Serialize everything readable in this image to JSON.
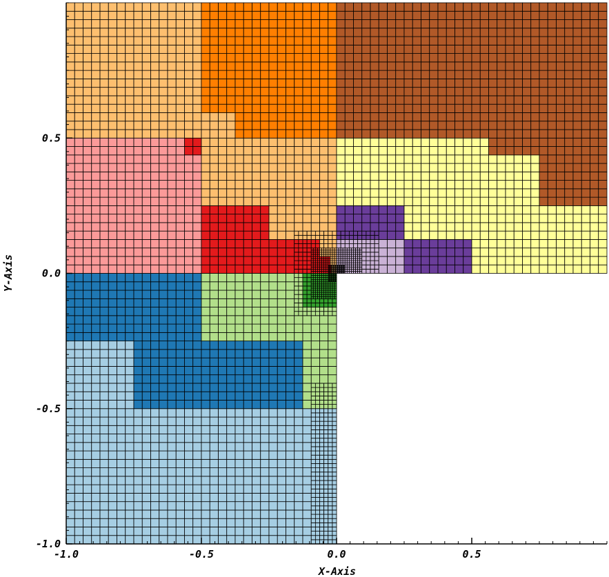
{
  "chart_data": {
    "type": "heatmap",
    "title": "",
    "xlabel": "X-Axis",
    "ylabel": "Y-Axis",
    "xlim": [
      -1.0,
      1.0
    ],
    "ylim": [
      -1.0,
      1.0
    ],
    "x_ticks": [
      {
        "value": -1.0,
        "label": "-1.0"
      },
      {
        "value": -0.5,
        "label": "-0.5"
      },
      {
        "value": 0.0,
        "label": "0.0"
      },
      {
        "value": 0.5,
        "label": "0.5"
      }
    ],
    "y_ticks": [
      {
        "value": -1.0,
        "label": "-1.0"
      },
      {
        "value": -0.5,
        "label": "-0.5"
      },
      {
        "value": 0.0,
        "label": "0.0"
      },
      {
        "value": 0.5,
        "label": "0.5"
      }
    ],
    "grid": "adaptive quadrilateral mesh, cell edges drawn in black",
    "base_cell_size": 0.03125,
    "domain_shape": "L-shaped (lower-right quadrant x>0, y<0 excluded)",
    "colors": {
      "light_blue": "#a6cee3",
      "blue": "#1f78b4",
      "light_green": "#b2df8a",
      "green": "#33a02c",
      "pink": "#fb9a99",
      "red": "#e31a1c",
      "light_orange": "#fdbf6f",
      "orange": "#ff7f00",
      "lavender": "#cab2d6",
      "purple": "#6a3d9a",
      "light_yellow": "#ffff99",
      "brown": "#b15928"
    },
    "partitions": [
      {
        "color": "light_blue",
        "x": [
          -1.0,
          0.0
        ],
        "y": [
          -1.0,
          -0.25
        ]
      },
      {
        "color": "blue",
        "x": [
          -1.0,
          0.0
        ],
        "y": [
          -0.5,
          0.0
        ]
      },
      {
        "color": "light_green",
        "x": [
          -0.5,
          -0.125
        ],
        "y": [
          -0.25,
          0.0
        ]
      },
      {
        "color": "green",
        "x": [
          -0.1875,
          -0.0156
        ],
        "y": [
          -0.125,
          0.0
        ]
      },
      {
        "color": "pink",
        "x": [
          -1.0,
          -0.5
        ],
        "y": [
          0.0,
          0.5
        ]
      },
      {
        "color": "red",
        "x": [
          -0.5,
          -0.0156
        ],
        "y": [
          0.0,
          0.25
        ]
      },
      {
        "color": "light_orange",
        "x": [
          -1.0,
          0.0
        ],
        "y": [
          0.0,
          1.0
        ]
      },
      {
        "color": "orange",
        "x": [
          -0.5,
          0.0
        ],
        "y": [
          0.5,
          1.0
        ]
      },
      {
        "color": "lavender",
        "x": [
          0.0,
          0.25
        ],
        "y": [
          0.0,
          0.125
        ]
      },
      {
        "color": "purple",
        "x": [
          0.0,
          0.5
        ],
        "y": [
          0.0,
          0.25
        ]
      },
      {
        "color": "light_yellow",
        "x": [
          0.0,
          1.0
        ],
        "y": [
          0.0,
          0.5
        ]
      },
      {
        "color": "brown",
        "x": [
          0.0,
          1.0
        ],
        "y": [
          0.25,
          1.0
        ]
      }
    ]
  }
}
